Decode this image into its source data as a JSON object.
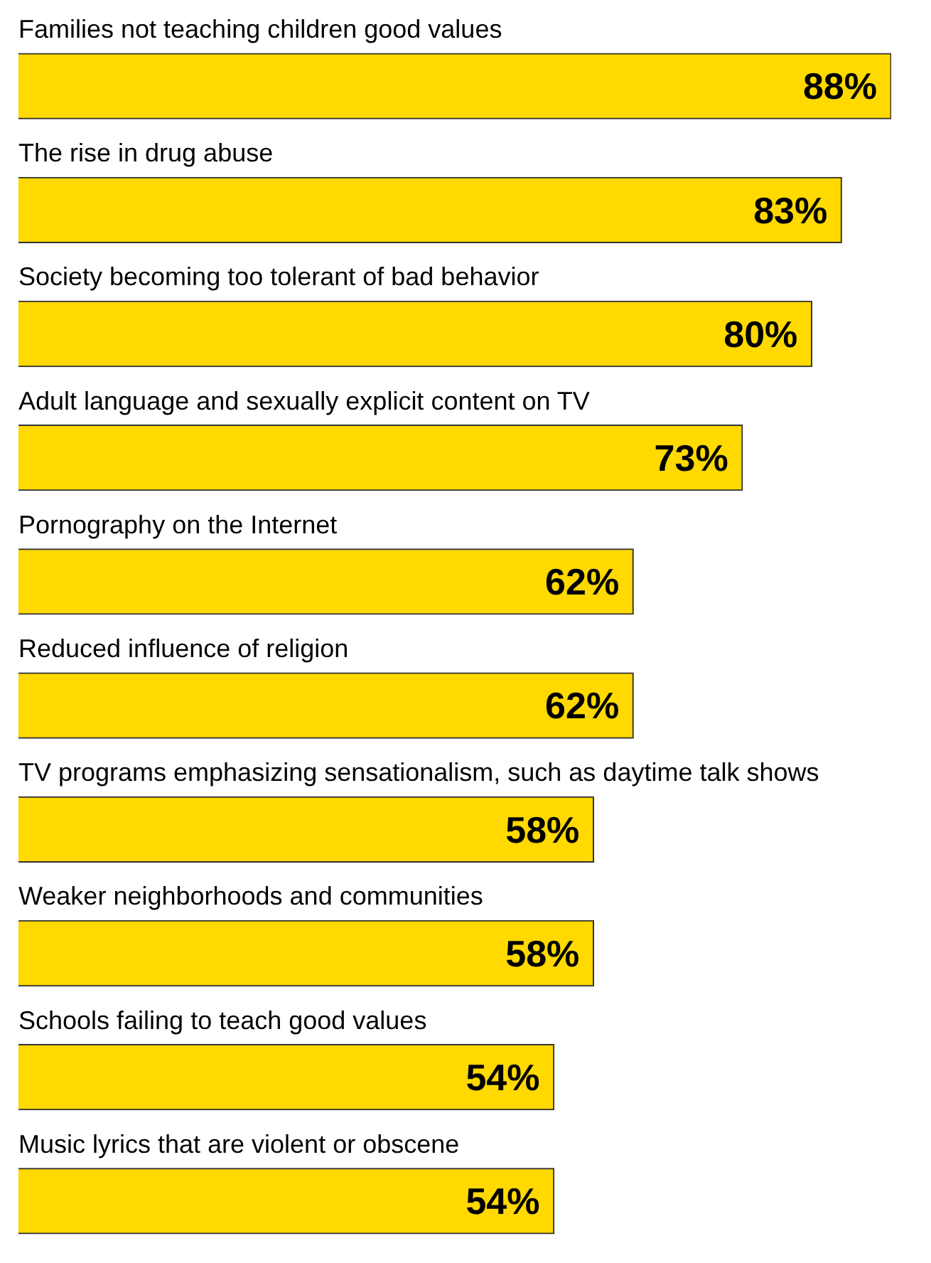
{
  "chart_data": {
    "type": "bar",
    "orientation": "horizontal",
    "categories": [
      "Families not teaching children good values",
      "The rise in drug abuse",
      "Society becoming too tolerant of bad behavior",
      "Adult language and sexually explicit content on TV",
      "Pornography on the Internet",
      "Reduced influence of religion",
      "TV programs emphasizing sensationalism, such as daytime talk shows",
      "Weaker neighborhoods and communities",
      "Schools failing to teach good values",
      "Music lyrics that are violent or obscene"
    ],
    "values": [
      88,
      83,
      80,
      73,
      62,
      62,
      58,
      58,
      54,
      54
    ],
    "value_labels": [
      "88%",
      "83%",
      "80%",
      "73%",
      "62%",
      "62%",
      "58%",
      "58%",
      "54%",
      "54%"
    ],
    "color": "#ffd900",
    "legend": false
  }
}
